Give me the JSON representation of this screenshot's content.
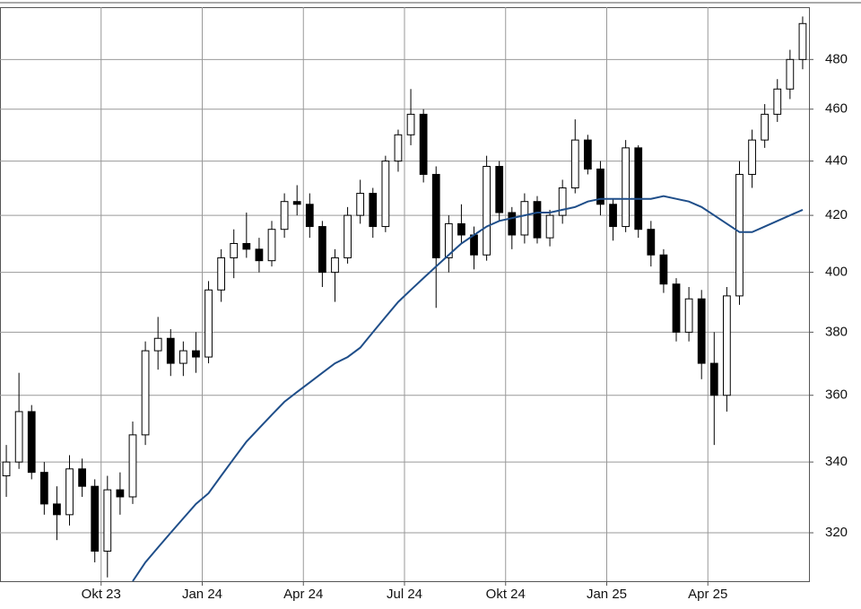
{
  "chart_data": {
    "type": "candlestick",
    "categories": [
      null,
      null,
      null,
      null,
      null,
      null,
      null,
      null,
      "Okt 23",
      null,
      null,
      null,
      null,
      null,
      null,
      null,
      "Jan 24",
      null,
      null,
      null,
      null,
      null,
      null,
      null,
      "Apr 24",
      null,
      null,
      null,
      null,
      null,
      null,
      null,
      "Jul 24",
      null,
      null,
      null,
      null,
      null,
      null,
      null,
      "Okt 24",
      null,
      null,
      null,
      null,
      null,
      null,
      null,
      "Jan 25",
      null,
      null,
      null,
      null,
      null,
      null,
      null,
      "Apr 25",
      null,
      null,
      null,
      null,
      null,
      null,
      null
    ],
    "open": [
      336,
      340,
      355,
      337,
      328,
      325,
      338,
      333,
      315,
      332,
      330,
      348,
      374,
      378,
      370,
      374,
      372,
      394,
      405,
      410,
      408,
      404,
      415,
      425,
      424,
      416,
      400,
      405,
      420,
      428,
      416,
      440,
      450,
      458,
      435,
      405,
      417,
      413,
      406,
      438,
      421,
      413,
      425,
      412,
      420,
      430,
      448,
      437,
      424,
      416,
      445,
      415,
      406,
      396,
      380,
      391,
      370,
      360,
      392,
      435,
      448,
      458,
      468,
      480
    ],
    "high": [
      345,
      367,
      357,
      340,
      333,
      342,
      341,
      335,
      336,
      337,
      352,
      377,
      385,
      381,
      377,
      380,
      397,
      408,
      415,
      421,
      412,
      418,
      428,
      431,
      428,
      418,
      408,
      423,
      433,
      430,
      442,
      452,
      468,
      460,
      438,
      420,
      424,
      416,
      442,
      440,
      423,
      428,
      427,
      422,
      433,
      456,
      450,
      440,
      426,
      448,
      446,
      418,
      408,
      398,
      395,
      394,
      380,
      395,
      440,
      452,
      462,
      472,
      484,
      498
    ],
    "low": [
      330,
      338,
      335,
      325,
      318,
      322,
      330,
      312,
      308,
      325,
      328,
      345,
      368,
      366,
      366,
      367,
      370,
      390,
      398,
      405,
      400,
      402,
      412,
      420,
      412,
      395,
      390,
      403,
      417,
      412,
      414,
      436,
      446,
      432,
      388,
      400,
      410,
      401,
      404,
      418,
      408,
      410,
      410,
      409,
      417,
      428,
      435,
      420,
      411,
      414,
      412,
      402,
      393,
      377,
      377,
      365,
      345,
      355,
      389,
      430,
      445,
      455,
      464,
      476
    ],
    "close": [
      340,
      355,
      337,
      328,
      325,
      338,
      333,
      315,
      332,
      330,
      348,
      374,
      378,
      370,
      374,
      372,
      394,
      405,
      410,
      408,
      404,
      415,
      425,
      424,
      416,
      400,
      405,
      420,
      428,
      416,
      440,
      450,
      458,
      435,
      405,
      417,
      413,
      406,
      438,
      421,
      413,
      425,
      412,
      420,
      430,
      448,
      437,
      424,
      416,
      445,
      415,
      406,
      396,
      380,
      391,
      370,
      360,
      392,
      435,
      448,
      458,
      468,
      480,
      495
    ],
    "moving_average": [
      null,
      null,
      null,
      null,
      null,
      null,
      null,
      null,
      null,
      null,
      307,
      312,
      316,
      320,
      324,
      328,
      331,
      336,
      341,
      346,
      350,
      354,
      358,
      361,
      364,
      367,
      370,
      372,
      375,
      380,
      385,
      390,
      394,
      398,
      402,
      406,
      410,
      413,
      416,
      418,
      419,
      420,
      421,
      421,
      422,
      423,
      425,
      426,
      426,
      426,
      426,
      426,
      427,
      426,
      425,
      423,
      420,
      417,
      414,
      414,
      416,
      418,
      420,
      422
    ],
    "up_color": "#ffffff",
    "down_color": "#000000",
    "line_color": "#1f4e89",
    "ylim": [
      307,
      502
    ],
    "yticks": [
      320,
      340,
      360,
      380,
      400,
      420,
      440,
      460,
      480
    ],
    "log_y": true,
    "grid": true
  }
}
